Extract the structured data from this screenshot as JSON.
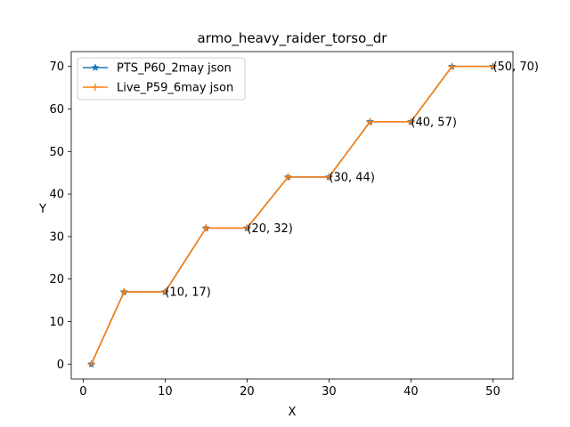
{
  "chart_data": {
    "type": "line",
    "title": "armo_heavy_raider_torso_dr",
    "xlabel": "X",
    "ylabel": "Y",
    "xlim": [
      -1.45,
      52.45
    ],
    "ylim": [
      -3.5,
      73.5
    ],
    "xticks": [
      0,
      10,
      20,
      30,
      40,
      50
    ],
    "yticks": [
      0,
      10,
      20,
      30,
      40,
      50,
      60,
      70
    ],
    "grid": false,
    "legend_position": "upper left",
    "x": [
      1,
      5,
      10,
      15,
      20,
      25,
      30,
      35,
      40,
      45,
      50
    ],
    "series": [
      {
        "name": "PTS_P60_2may json",
        "color": "#1f77b4",
        "marker": "star",
        "values": [
          0,
          17,
          17,
          32,
          32,
          44,
          44,
          57,
          57,
          70,
          70
        ]
      },
      {
        "name": "Live_P59_6may json",
        "color": "#ff7f0e",
        "marker": "plus",
        "values": [
          0,
          17,
          17,
          32,
          32,
          44,
          44,
          57,
          57,
          70,
          70
        ]
      }
    ],
    "annotations": [
      {
        "text": "(10, 17)",
        "x": 10,
        "y": 17
      },
      {
        "text": "(20, 32)",
        "x": 20,
        "y": 32
      },
      {
        "text": "(30, 44)",
        "x": 30,
        "y": 44
      },
      {
        "text": "(40, 57)",
        "x": 40,
        "y": 57
      },
      {
        "text": "(50, 70)",
        "x": 50,
        "y": 70
      }
    ]
  }
}
